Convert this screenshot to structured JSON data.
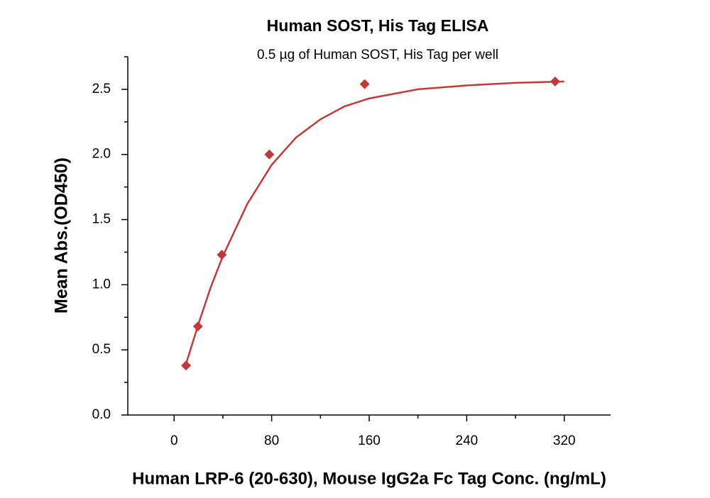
{
  "chart_data": {
    "type": "scatter",
    "title": "Human SOST, His Tag ELISA",
    "subtitle": "0.5 µg of Human SOST, His Tag per well",
    "x_label": "Human LRP-6 (20-630), Mouse IgG2a Fc Tag Conc. (ng/mL)",
    "y_label": "Mean Abs.(OD450)",
    "xlim": [
      -38,
      358
    ],
    "ylim": [
      0,
      2.75
    ],
    "xticks": [
      0,
      80,
      160,
      240,
      320
    ],
    "xminor": [
      40,
      120,
      200,
      280
    ],
    "yticks": [
      {
        "value": 0,
        "label": "0.0"
      },
      0.5,
      {
        "value": 1,
        "label": "1.0"
      },
      1.5,
      {
        "value": 2,
        "label": "2.0"
      },
      2.5
    ],
    "yminor": [
      0.25,
      0.75,
      1.25,
      1.75,
      2.25,
      2.75
    ],
    "series": [
      {
        "color": "#c0393b",
        "marker": "diamond",
        "x": [
          9.8,
          19.5,
          39.1,
          78.1,
          156.3,
          312.5
        ],
        "values": [
          0.38,
          0.68,
          1.23,
          2.0,
          2.54,
          2.56
        ]
      }
    ],
    "fit": {
      "color": "#c0393b",
      "x": [
        10,
        20,
        30,
        40,
        60,
        80,
        100,
        120,
        140,
        160,
        200,
        240,
        280,
        320
      ],
      "values": [
        0.4,
        0.7,
        0.98,
        1.22,
        1.62,
        1.92,
        2.13,
        2.27,
        2.37,
        2.43,
        2.5,
        2.53,
        2.55,
        2.56
      ]
    }
  }
}
